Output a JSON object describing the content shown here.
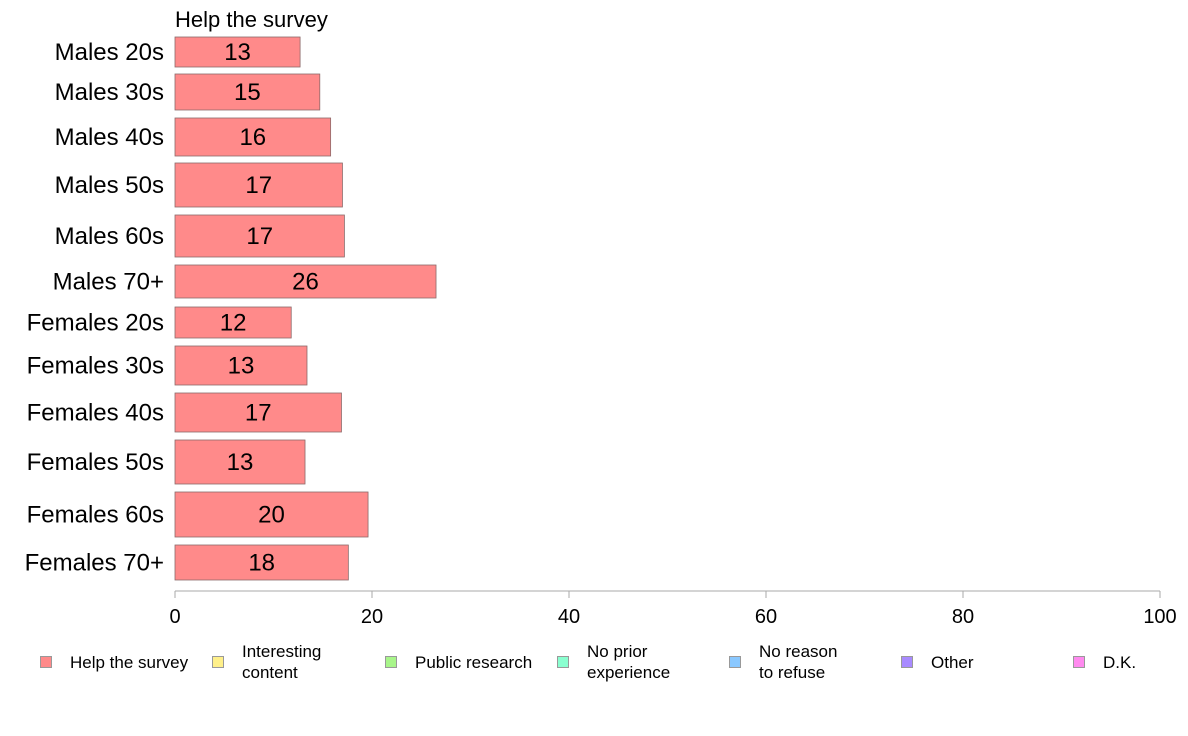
{
  "chart_data": {
    "type": "bar",
    "orientation": "horizontal",
    "title": "",
    "series_label": "Help the survey",
    "categories": [
      "Males 20s",
      "Males 30s",
      "Males 40s",
      "Males 50s",
      "Males 60s",
      "Males 70+",
      "Females 20s",
      "Females 30s",
      "Females 40s",
      "Females 50s",
      "Females 60s",
      "Females 70+"
    ],
    "series": [
      {
        "name": "Help the survey",
        "color": "#ff8a8a",
        "values": [
          12.7,
          14.7,
          15.8,
          17.0,
          17.2,
          26.5,
          11.8,
          13.4,
          16.9,
          13.2,
          19.6,
          17.6
        ],
        "labels": [
          "13",
          "15",
          "16",
          "17",
          "17",
          "26",
          "12",
          "13",
          "17",
          "13",
          "20",
          "18"
        ]
      }
    ],
    "xlim": [
      0,
      100
    ],
    "xticks": [
      "0",
      "20",
      "40",
      "60",
      "80",
      "100"
    ],
    "grid": false,
    "legend_position": "bottom",
    "legend": [
      {
        "label": "Help the survey",
        "color": "#ff8a8a"
      },
      {
        "label": "Interesting\ncontent",
        "color": "#fff08a"
      },
      {
        "label": "Public research",
        "color": "#a8f58a"
      },
      {
        "label": "No prior\nexperience",
        "color": "#8affd0"
      },
      {
        "label": "No reason\nto refuse",
        "color": "#8ac8ff"
      },
      {
        "label": "Other",
        "color": "#a88aff"
      },
      {
        "label": "D.K.",
        "color": "#ff8aef"
      }
    ]
  }
}
